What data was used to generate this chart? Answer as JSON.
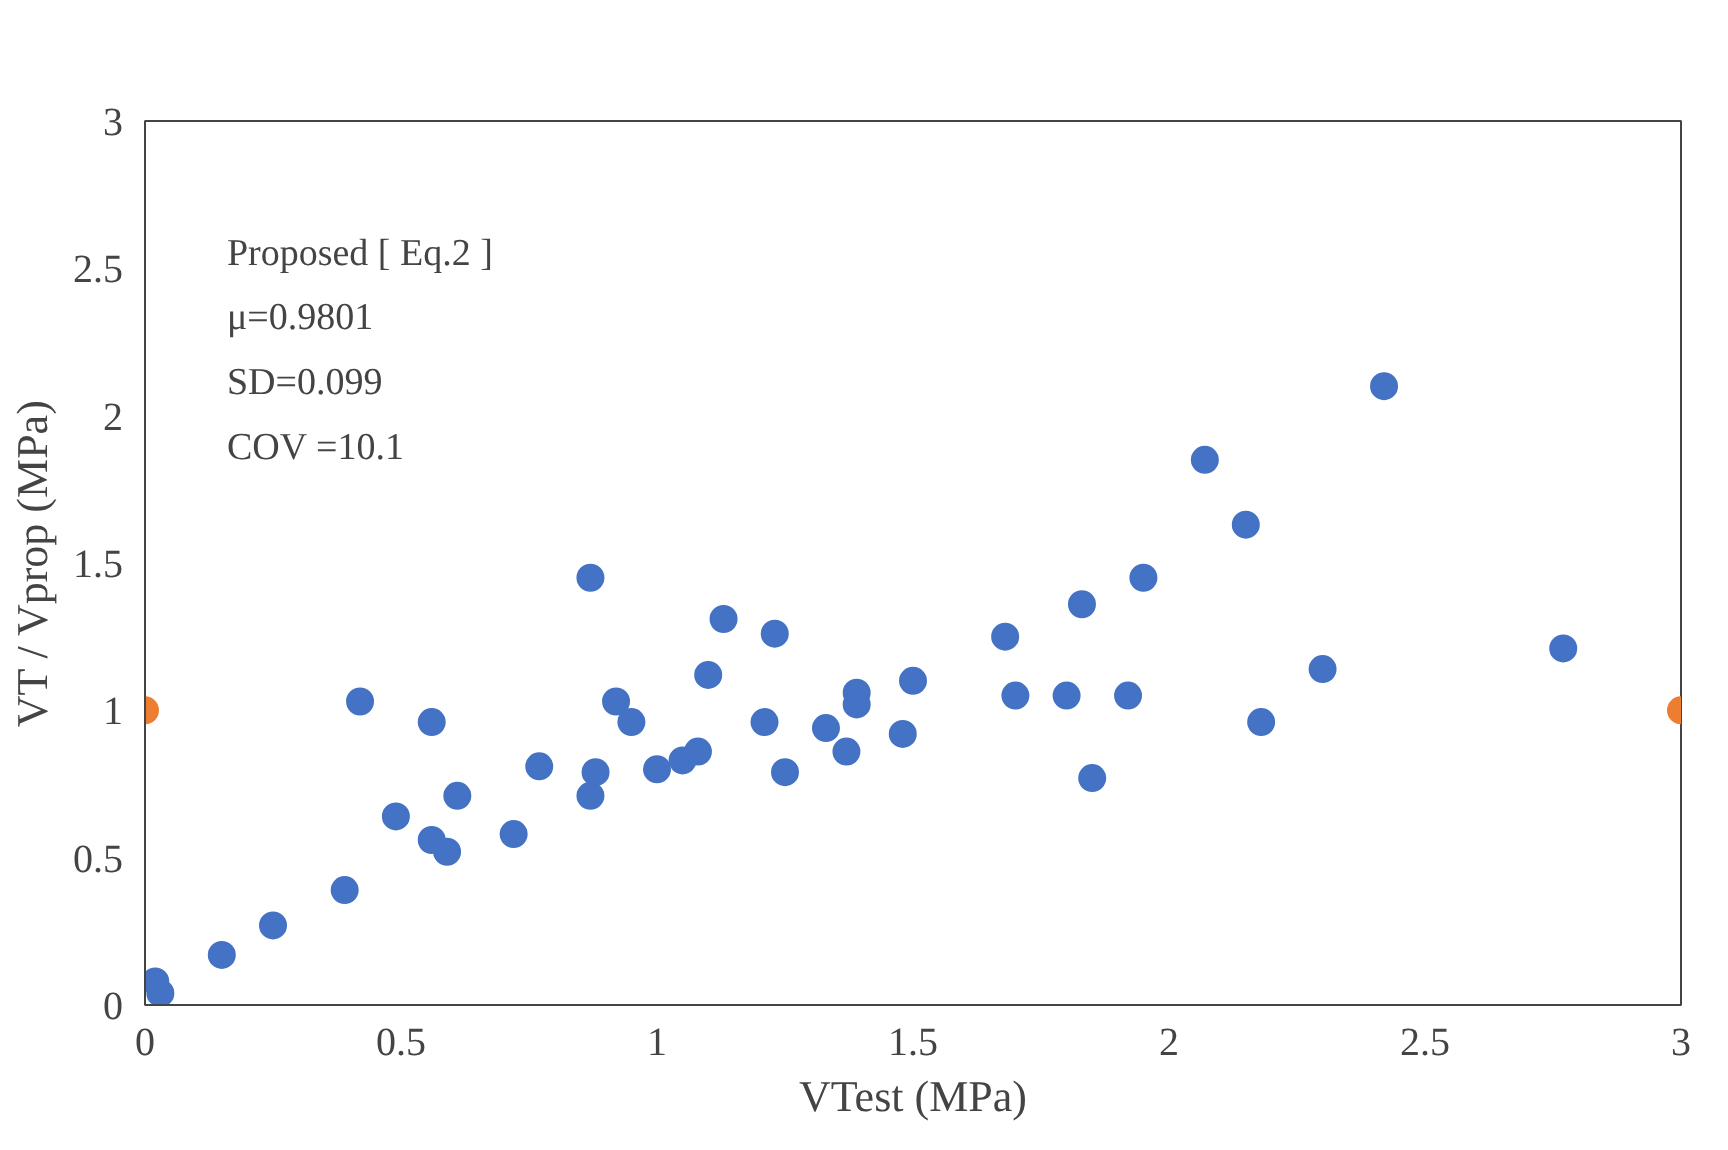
{
  "chart_data": {
    "type": "scatter",
    "xlabel": "VTest (MPa)",
    "ylabel": "VT / Vprop (MPa)",
    "annotations": [
      "Proposed [ Eq.2 ]",
      "μ=0.9801",
      "SD=0.099",
      "COV =10.1"
    ],
    "xlim": [
      0,
      3
    ],
    "ylim": [
      0,
      3
    ],
    "xticks": [
      0,
      0.5,
      1,
      1.5,
      2,
      2.5,
      3
    ],
    "yticks": [
      0,
      0.5,
      1,
      1.5,
      2,
      2.5,
      3
    ],
    "grid": false,
    "marker": "circle",
    "series": [
      {
        "color": "#4472c4",
        "x": [
          0.02,
          0.03,
          0.15,
          0.25,
          0.39,
          0.42,
          0.49,
          0.56,
          0.56,
          0.59,
          0.61,
          0.72,
          0.77,
          0.87,
          0.88,
          0.87,
          0.92,
          0.95,
          1.0,
          1.05,
          1.08,
          1.1,
          1.13,
          1.21,
          1.23,
          1.25,
          1.33,
          1.37,
          1.39,
          1.39,
          1.48,
          1.5,
          1.68,
          1.7,
          1.8,
          1.83,
          1.85,
          1.92,
          1.95,
          2.07,
          2.15,
          2.18,
          2.3,
          2.42,
          2.77
        ],
        "values": [
          0.08,
          0.04,
          0.17,
          0.27,
          0.39,
          1.03,
          0.64,
          0.96,
          0.56,
          0.52,
          0.71,
          0.58,
          0.81,
          0.71,
          0.79,
          1.45,
          1.03,
          0.96,
          0.8,
          0.83,
          0.86,
          1.12,
          1.31,
          0.96,
          1.26,
          0.79,
          0.94,
          0.86,
          1.06,
          1.02,
          0.92,
          1.1,
          1.25,
          1.05,
          1.05,
          1.36,
          0.77,
          1.05,
          1.45,
          1.85,
          1.63,
          0.96,
          1.14,
          2.1,
          1.21
        ]
      },
      {
        "color": "#ed7d31",
        "x": [
          0,
          3
        ],
        "values": [
          1,
          1
        ]
      }
    ]
  }
}
